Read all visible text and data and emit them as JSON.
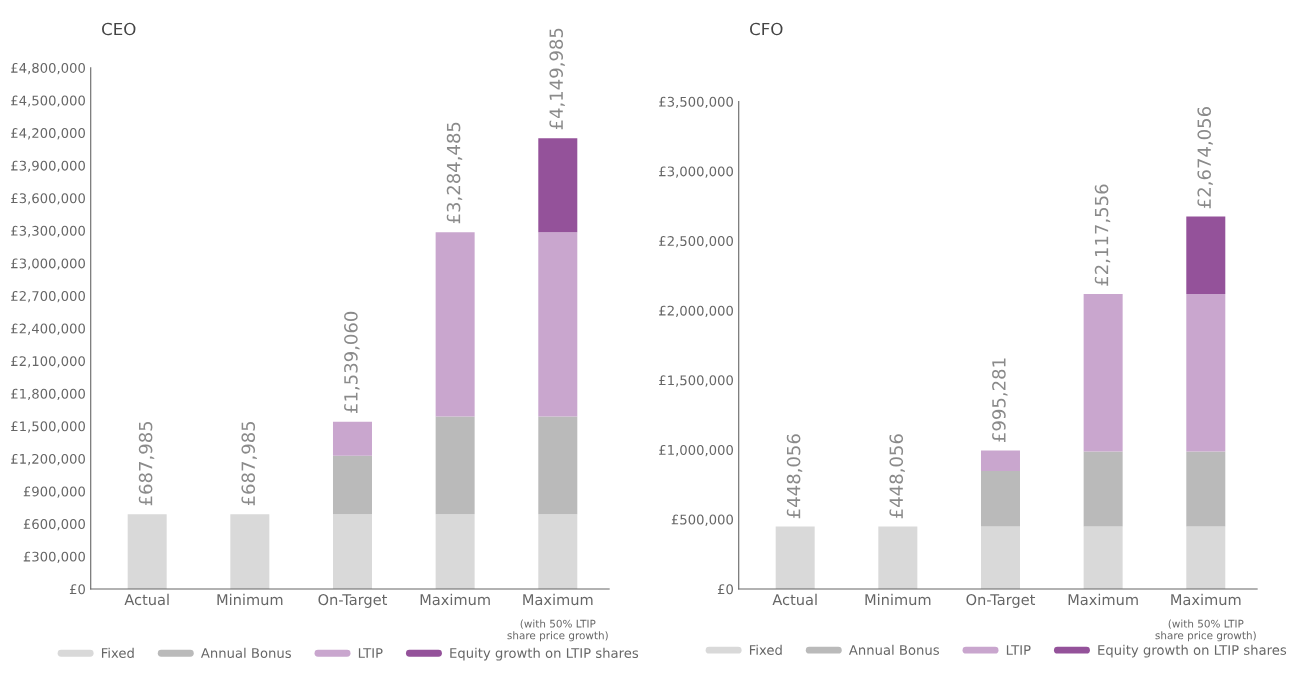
{
  "chart_data": [
    {
      "type": "bar",
      "title": "CEO",
      "stacked": true,
      "categories": [
        "Actual",
        "Minimum",
        "On-Target",
        "Maximum",
        "Maximum"
      ],
      "series": [
        {
          "name": "Fixed",
          "color": "#d9d9d9",
          "values": [
            687985,
            687985,
            687985,
            687985,
            687985
          ]
        },
        {
          "name": "Annual Bonus",
          "color": "#bababa",
          "values": [
            0,
            0,
            540000,
            900000,
            900000
          ]
        },
        {
          "name": "LTIP",
          "color": "#c9a6ce",
          "values": [
            0,
            0,
            311075,
            1696500,
            1696500
          ]
        },
        {
          "name": "Equity growth on LTIP shares",
          "color": "#94529a",
          "values": [
            0,
            0,
            0,
            0,
            865500
          ]
        }
      ],
      "totals": [
        "£687,985",
        "£687,985",
        "£1,539,060",
        "£3,284,485",
        "£4,149,985"
      ],
      "annotations": [
        "(with 50% LTIP\nshare price growth)"
      ],
      "ylim": [
        0,
        4800000
      ],
      "yticks": [
        {
          "value": 0,
          "label": "£0"
        },
        {
          "value": 300000,
          "label": "£300,000"
        },
        {
          "value": 600000,
          "label": "£600,000"
        },
        {
          "value": 900000,
          "label": "£900,000"
        },
        {
          "value": 1200000,
          "label": "£1,200,000"
        },
        {
          "value": 1500000,
          "label": "£1,500,000"
        },
        {
          "value": 1800000,
          "label": "£1,800,000"
        },
        {
          "value": 2100000,
          "label": "£2,100,000"
        },
        {
          "value": 2400000,
          "label": "£2,400,000"
        },
        {
          "value": 2700000,
          "label": "£2,700,000"
        },
        {
          "value": 3000000,
          "label": "£3,000,000"
        },
        {
          "value": 3300000,
          "label": "£3,300,000"
        },
        {
          "value": 3600000,
          "label": "£3,600,000"
        },
        {
          "value": 3900000,
          "label": "£3,900,000"
        },
        {
          "value": 4200000,
          "label": "£4,200,000"
        },
        {
          "value": 4500000,
          "label": "£4,500,000"
        },
        {
          "value": 4800000,
          "label": "£4,800,000"
        }
      ],
      "grid": false,
      "legend": "bottom"
    },
    {
      "type": "bar",
      "title": "CFO",
      "stacked": true,
      "categories": [
        "Actual",
        "Minimum",
        "On-Target",
        "Maximum",
        "Maximum"
      ],
      "series": [
        {
          "name": "Fixed",
          "color": "#d9d9d9",
          "values": [
            448056,
            448056,
            448056,
            448056,
            448056
          ]
        },
        {
          "name": "Annual Bonus",
          "color": "#bababa",
          "values": [
            0,
            0,
            400000,
            540000,
            540000
          ]
        },
        {
          "name": "LTIP",
          "color": "#c9a6ce",
          "values": [
            0,
            0,
            147225,
            1129500,
            1129500
          ]
        },
        {
          "name": "Equity growth on LTIP shares",
          "color": "#94529a",
          "values": [
            0,
            0,
            0,
            0,
            556500
          ]
        }
      ],
      "totals": [
        "£448,056",
        "£448,056",
        "£995,281",
        "£2,117,556",
        "£2,674,056"
      ],
      "annotations": [
        "(with 50% LTIP\nshare price growth)"
      ],
      "ylim": [
        0,
        3500000
      ],
      "yticks": [
        {
          "value": 0,
          "label": "£0"
        },
        {
          "value": 500000,
          "label": "£500,000"
        },
        {
          "value": 1000000,
          "label": "£1,000,000"
        },
        {
          "value": 1500000,
          "label": "£1,500,000"
        },
        {
          "value": 2000000,
          "label": "£2,000,000"
        },
        {
          "value": 2500000,
          "label": "£2,500,000"
        },
        {
          "value": 3000000,
          "label": "£3,000,000"
        },
        {
          "value": 3500000,
          "label": "£3,500,000"
        }
      ],
      "grid": false,
      "legend": "bottom"
    }
  ]
}
